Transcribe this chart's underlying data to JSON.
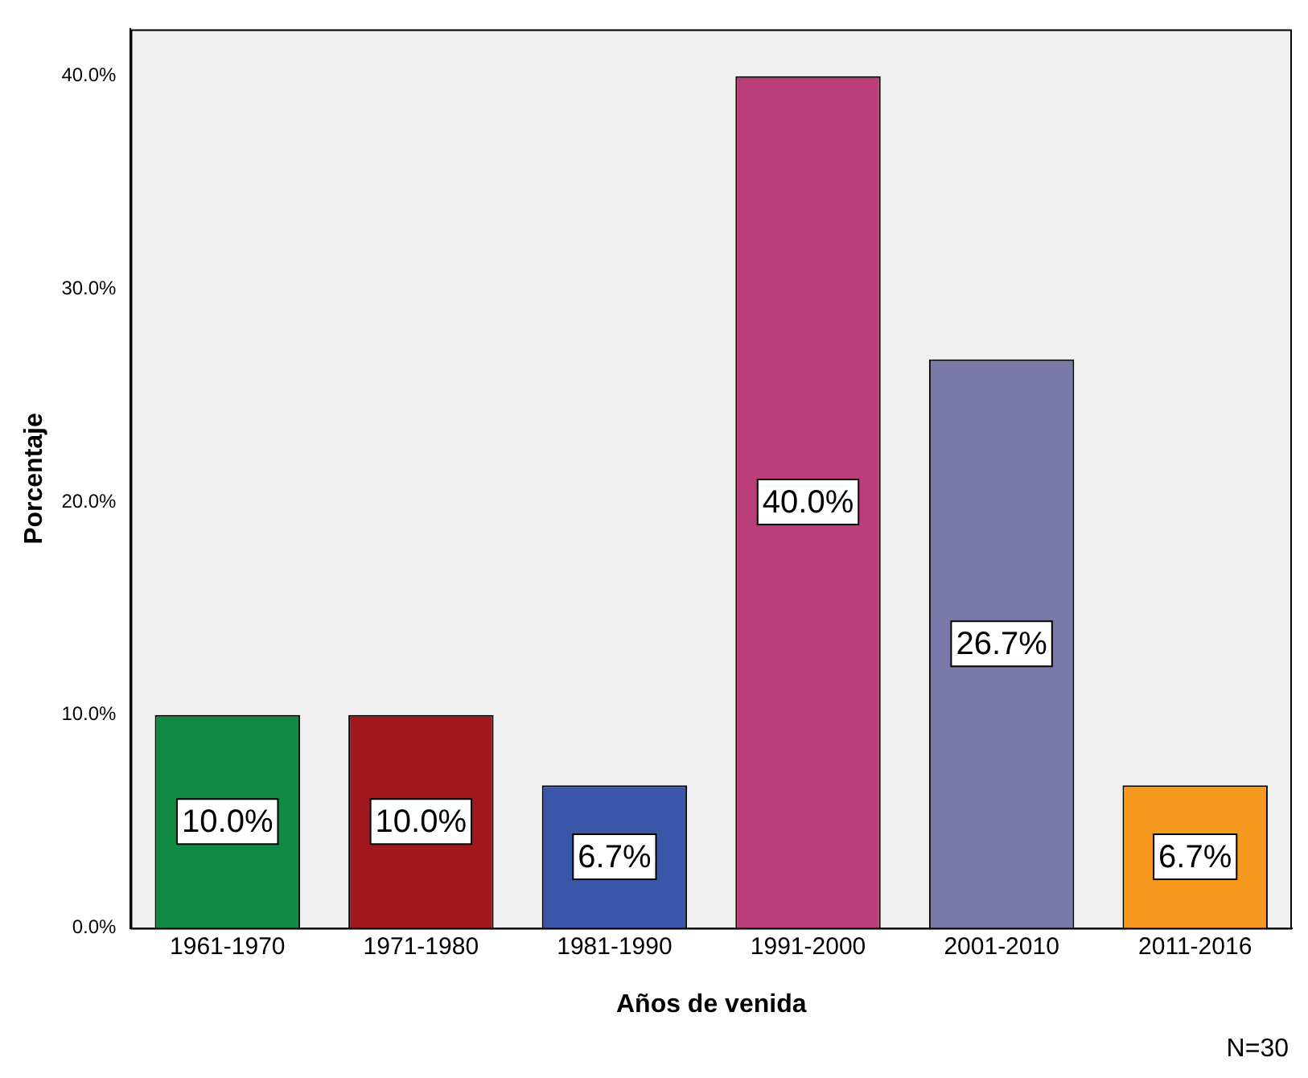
{
  "chart_data": {
    "type": "bar",
    "xlabel": "Años de venida",
    "ylabel": "Porcentaje",
    "categories": [
      "1961-1970",
      "1971-1980",
      "1981-1990",
      "1991-2000",
      "2001-2010",
      "2011-2016"
    ],
    "values": [
      10.0,
      10.0,
      6.7,
      40.0,
      26.7,
      6.7
    ],
    "colors": [
      "#118a44",
      "#a0181c",
      "#3a56a8",
      "#b93e7a",
      "#7a79a7",
      "#f6991f"
    ],
    "value_labels": [
      "10.0%",
      "10.0%",
      "6.7%",
      "40.0%",
      "26.7%",
      "6.7%"
    ],
    "ylim": [
      0,
      42.2
    ],
    "yticks": [
      {
        "value": 0,
        "label": "0.0%"
      },
      {
        "value": 10,
        "label": "10.0%"
      },
      {
        "value": 20,
        "label": "20.0%"
      },
      {
        "value": 30,
        "label": "30.0%"
      },
      {
        "value": 40,
        "label": "40.0%"
      }
    ],
    "grid": false,
    "legend": false,
    "annotations": [
      "N=30"
    ]
  }
}
